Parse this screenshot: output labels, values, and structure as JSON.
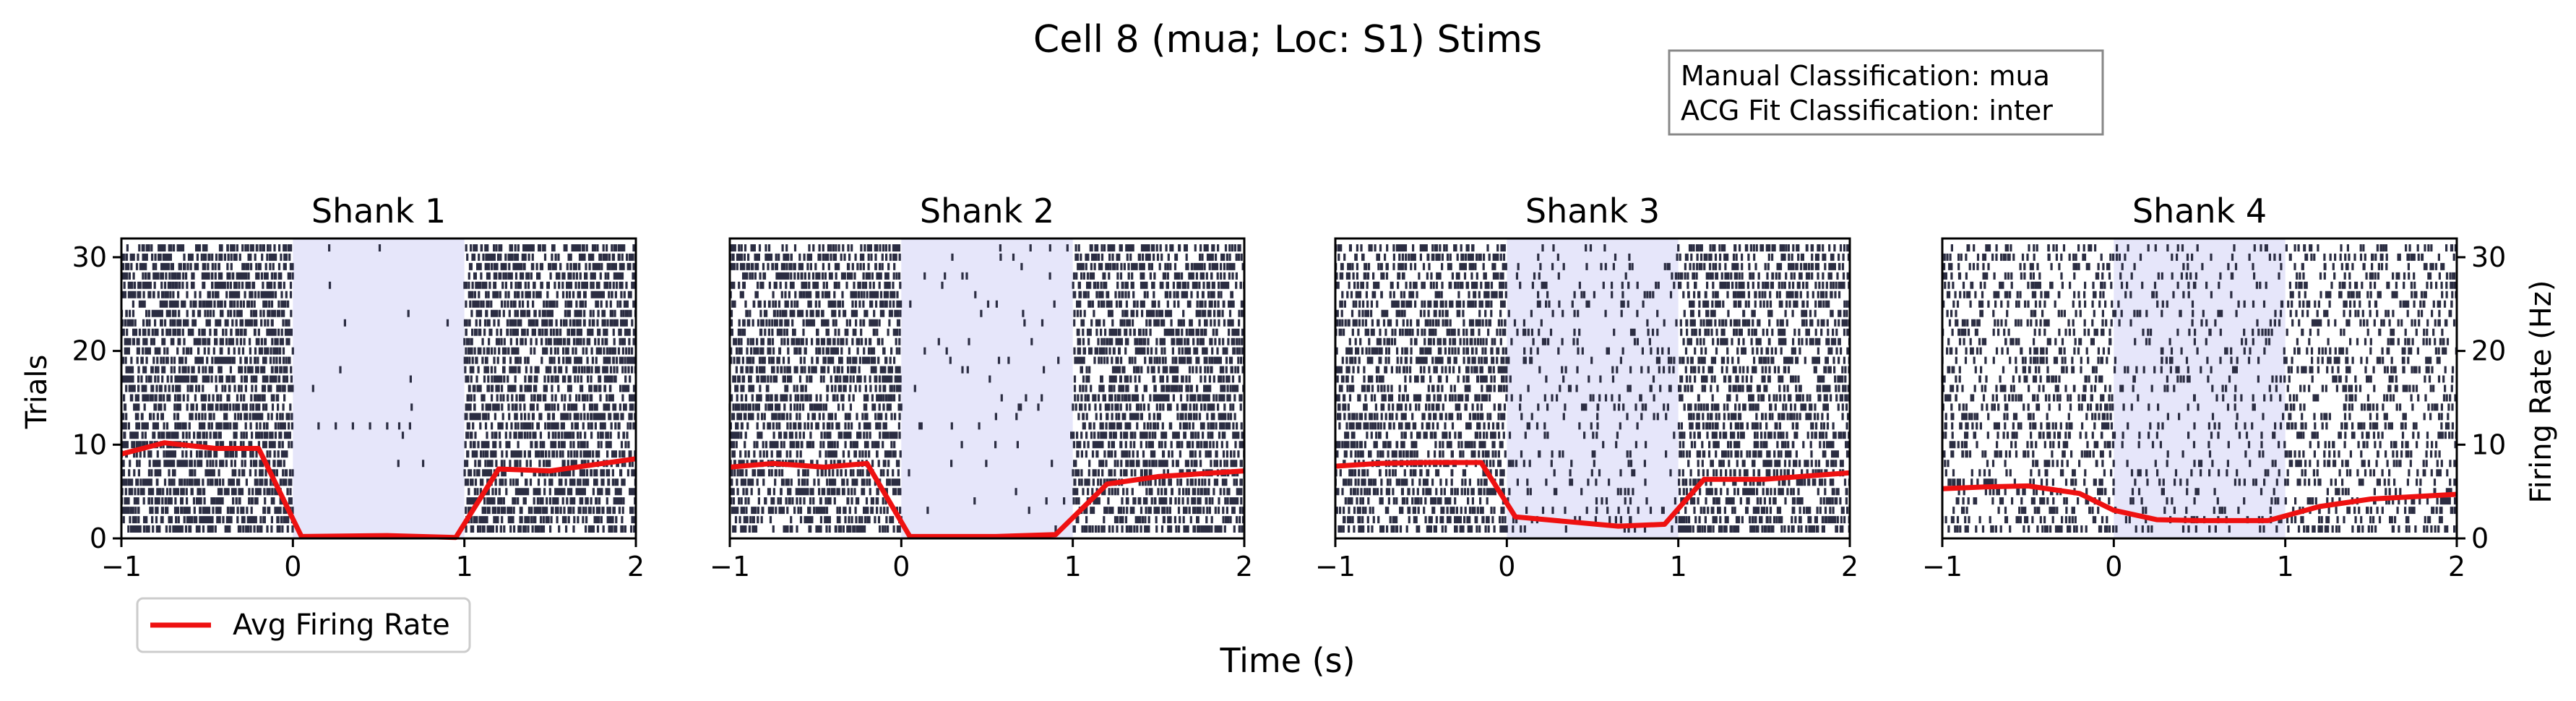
{
  "figure": {
    "title": "Cell 8 (mua; Loc: S1) Stims",
    "info_box": [
      "Manual Classification: mua",
      "ACG Fit Classification: inter"
    ],
    "x_label": "Time (s)",
    "y_label_left": "Trials",
    "y_label_right": "Firing Rate (Hz)",
    "legend": "Avg Firing Rate"
  },
  "colors": {
    "spike": "#2b2d42",
    "rate": "#ee1111",
    "stim": "#e6e6fa"
  },
  "chart_data": [
    {
      "type": "raster",
      "title": "Shank 1",
      "xlim": [
        -1,
        2
      ],
      "ylim": [
        0,
        32
      ],
      "trials": 31,
      "xticks": [
        -1,
        0,
        1,
        2
      ],
      "yticks": [
        0,
        10,
        20,
        30
      ],
      "stim_interval": [
        0,
        1
      ],
      "spike_density_pre_post": 0.55,
      "spike_density_stim": 0.004,
      "stim_spikes": [
        [
          0.15,
          12
        ],
        [
          0.25,
          12
        ],
        [
          0.35,
          12
        ],
        [
          0.45,
          12
        ],
        [
          0.55,
          12
        ],
        [
          0.62,
          12
        ]
      ],
      "rate": {
        "x": [
          -1,
          -0.75,
          -0.45,
          -0.2,
          0.05,
          0.55,
          0.95,
          1.2,
          1.5,
          2.0
        ],
        "y": [
          9.0,
          10.2,
          9.6,
          9.6,
          0.2,
          0.3,
          0.1,
          7.4,
          7.2,
          8.5
        ]
      }
    },
    {
      "type": "raster",
      "title": "Shank 2",
      "xlim": [
        -1,
        2
      ],
      "ylim": [
        0,
        32
      ],
      "trials": 31,
      "xticks": [
        -1,
        0,
        1,
        2
      ],
      "yticks": [
        0,
        10,
        20,
        30
      ],
      "stim_interval": [
        0,
        1
      ],
      "spike_density_pre_post": 0.5,
      "spike_density_stim": 0.02,
      "rate": {
        "x": [
          -1,
          -0.75,
          -0.45,
          -0.2,
          0.05,
          0.55,
          0.9,
          1.2,
          1.5,
          2.0
        ],
        "y": [
          7.6,
          8.0,
          7.6,
          8.0,
          0.2,
          0.2,
          0.4,
          5.8,
          6.6,
          7.2
        ]
      }
    },
    {
      "type": "raster",
      "title": "Shank 3",
      "xlim": [
        -1,
        2
      ],
      "ylim": [
        0,
        32
      ],
      "trials": 31,
      "xticks": [
        -1,
        0,
        1,
        2
      ],
      "yticks": [
        0,
        10,
        20,
        30
      ],
      "stim_interval": [
        0,
        1
      ],
      "spike_density_pre_post": 0.45,
      "spike_density_stim": 0.1,
      "rate": {
        "x": [
          -1,
          -0.75,
          -0.45,
          -0.15,
          0.05,
          0.35,
          0.65,
          0.92,
          1.15,
          1.5,
          2.0
        ],
        "y": [
          7.7,
          8.0,
          8.1,
          8.1,
          2.3,
          1.8,
          1.3,
          1.5,
          6.3,
          6.3,
          7.0
        ]
      }
    },
    {
      "type": "raster",
      "title": "Shank 4",
      "xlim": [
        -1,
        2
      ],
      "ylim": [
        0,
        32
      ],
      "trials": 31,
      "xticks": [
        -1,
        0,
        1,
        2
      ],
      "yticks": [
        0,
        10,
        20,
        30
      ],
      "stim_interval": [
        0,
        1
      ],
      "spike_density_pre_post": 0.28,
      "spike_density_stim": 0.13,
      "rate": {
        "x": [
          -1,
          -0.75,
          -0.5,
          -0.2,
          0.0,
          0.25,
          0.5,
          0.9,
          1.2,
          1.5,
          2.0
        ],
        "y": [
          5.3,
          5.5,
          5.6,
          4.8,
          3.0,
          2.0,
          1.9,
          1.9,
          3.4,
          4.2,
          4.7
        ]
      }
    }
  ]
}
